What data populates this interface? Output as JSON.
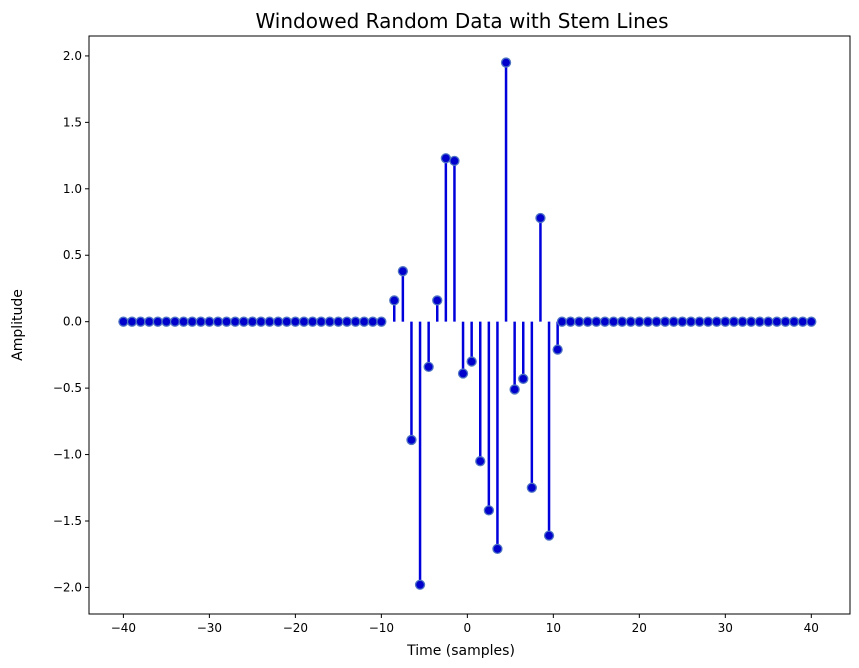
{
  "chart_data": {
    "type": "stem",
    "title": "Windowed Random Data with Stem Lines",
    "xlabel": "Time (samples)",
    "ylabel": "Amplitude",
    "xlim": [
      -44,
      44.5
    ],
    "ylim": [
      -2.2,
      2.15
    ],
    "xticks": [
      -40,
      -30,
      -20,
      -10,
      0,
      10,
      20,
      30,
      40
    ],
    "xtick_labels": [
      "−40",
      "−30",
      "−20",
      "−10",
      "0",
      "10",
      "20",
      "30",
      "40"
    ],
    "yticks": [
      -2.0,
      -1.5,
      -1.0,
      -0.5,
      0.0,
      0.5,
      1.0,
      1.5,
      2.0
    ],
    "ytick_labels": [
      "−2.0",
      "−1.5",
      "−1.0",
      "−0.5",
      "0.0",
      "0.5",
      "1.0",
      "1.5",
      "2.0"
    ],
    "line_color": "#0000dd",
    "marker_face": "#0000cc",
    "marker_edge": "#4f74c4",
    "grid": false,
    "series": [
      {
        "x": [
          -40,
          -39,
          -38,
          -37,
          -36,
          -35,
          -34,
          -33,
          -32,
          -31,
          -30,
          -29,
          -28,
          -27,
          -26,
          -25,
          -24,
          -23,
          -22,
          -21,
          -20,
          -19,
          -18,
          -17,
          -16,
          -15,
          -14,
          -13,
          -12,
          -11,
          -10,
          -9,
          -8,
          -7,
          -6,
          -5,
          -4,
          -3,
          -2,
          -1,
          0,
          1,
          2,
          3,
          4,
          5,
          6,
          7,
          8,
          9,
          10,
          11,
          12,
          13,
          14,
          15,
          16,
          17,
          18,
          19,
          20,
          21,
          22,
          23,
          24,
          25,
          26,
          27,
          28,
          29,
          30,
          31,
          32,
          33,
          34,
          35,
          36,
          37,
          38,
          39,
          40
        ],
        "y": [
          0,
          0,
          0,
          0,
          0,
          0,
          0,
          0,
          0,
          0,
          0,
          0,
          0,
          0,
          0,
          0,
          0,
          0,
          0,
          0,
          0,
          0,
          0,
          0,
          0,
          0,
          0,
          0,
          0,
          0,
          0,
          0.16,
          0.38,
          -0.89,
          -1.98,
          -0.34,
          0.16,
          1.23,
          1.21,
          -0.39,
          -0.3,
          -1.05,
          -1.42,
          -1.71,
          1.95,
          -0.51,
          -0.43,
          -1.25,
          0.78,
          -1.61,
          -0.21,
          0,
          0,
          0,
          0,
          0,
          0,
          0,
          0,
          0,
          0,
          0,
          0,
          0,
          0,
          0,
          0,
          0,
          0,
          0,
          0,
          0,
          0,
          0,
          0,
          0,
          0,
          0,
          0,
          0,
          0
        ],
        "x_offset_stem_region": 0.5
      }
    ]
  }
}
